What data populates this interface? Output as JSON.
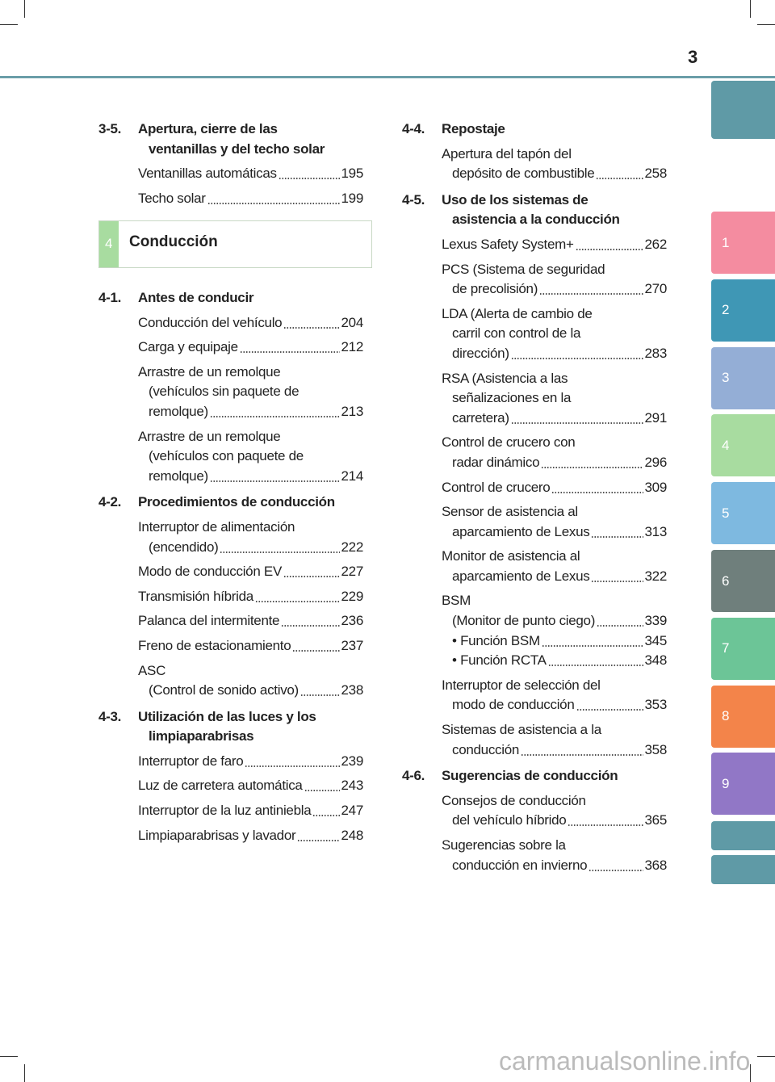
{
  "page_number": "3",
  "tabs": [
    "1",
    "2",
    "3",
    "4",
    "5",
    "6",
    "7",
    "8",
    "9"
  ],
  "left_column": {
    "top_sections": [
      {
        "number": "3-5.",
        "title": [
          "Apertura, cierre de las",
          "ventanillas y del techo solar"
        ],
        "entries": [
          {
            "lines": [
              "Ventanillas automáticas"
            ],
            "page": 195
          },
          {
            "lines": [
              "Techo solar"
            ],
            "page": 199
          }
        ]
      }
    ],
    "chapter": {
      "number": "4",
      "title": "Conducción"
    },
    "sections": [
      {
        "number": "4-1.",
        "title": [
          "Antes de conducir"
        ],
        "entries": [
          {
            "lines": [
              "Conducción del vehículo"
            ],
            "page": 204
          },
          {
            "lines": [
              "Carga y equipaje"
            ],
            "page": 212
          },
          {
            "lines": [
              "Arrastre de un remolque",
              "(vehículos sin paquete de",
              "remolque)"
            ],
            "page": 213
          },
          {
            "lines": [
              "Arrastre de un remolque",
              "(vehículos con paquete de",
              "remolque)"
            ],
            "page": 214
          }
        ]
      },
      {
        "number": "4-2.",
        "title": [
          "Procedimientos de conducción"
        ],
        "entries": [
          {
            "lines": [
              "Interruptor de alimentación",
              "(encendido)"
            ],
            "page": 222
          },
          {
            "lines": [
              "Modo de conducción EV"
            ],
            "page": 227
          },
          {
            "lines": [
              "Transmisión híbrida"
            ],
            "page": 229
          },
          {
            "lines": [
              "Palanca del intermitente"
            ],
            "page": 236
          },
          {
            "lines": [
              "Freno de estacionamiento"
            ],
            "page": 237
          },
          {
            "lines": [
              "ASC",
              "(Control de sonido activo)"
            ],
            "page": 238
          }
        ]
      },
      {
        "number": "4-3.",
        "title": [
          "Utilización de las luces y los",
          "limpiaparabrisas"
        ],
        "entries": [
          {
            "lines": [
              "Interruptor de faro"
            ],
            "page": 239
          },
          {
            "lines": [
              "Luz de carretera automática"
            ],
            "page": 243
          },
          {
            "lines": [
              "Interruptor de la luz antiniebla"
            ],
            "page": 247
          },
          {
            "lines": [
              "Limpiaparabrisas y lavador"
            ],
            "page": 248
          }
        ]
      }
    ]
  },
  "right_column": {
    "sections": [
      {
        "number": "4-4.",
        "title": [
          "Repostaje"
        ],
        "entries": [
          {
            "lines": [
              "Apertura del tapón del",
              "depósito de combustible"
            ],
            "page": 258
          }
        ]
      },
      {
        "number": "4-5.",
        "title": [
          "Uso de los sistemas de",
          "asistencia a la conducción"
        ],
        "entries": [
          {
            "lines": [
              "Lexus Safety System+"
            ],
            "page": 262
          },
          {
            "lines": [
              "PCS (Sistema de seguridad",
              "de precolisión)"
            ],
            "page": 270
          },
          {
            "lines": [
              "LDA (Alerta de cambio de",
              "carril con control de la",
              "dirección)"
            ],
            "page": 283
          },
          {
            "lines": [
              "RSA (Asistencia a las",
              "señalizaciones en la",
              "carretera)"
            ],
            "page": 291
          },
          {
            "lines": [
              "Control de crucero con",
              "radar dinámico"
            ],
            "page": 296
          },
          {
            "lines": [
              "Control de crucero"
            ],
            "page": 309
          },
          {
            "lines": [
              "Sensor de asistencia al",
              "aparcamiento de Lexus"
            ],
            "page": 313
          },
          {
            "lines": [
              "Monitor de asistencia al",
              "aparcamiento de Lexus"
            ],
            "page": 322
          },
          {
            "lines": [
              "BSM",
              "(Monitor de punto ciego)"
            ],
            "page": 339,
            "items": [
              {
                "text": "• Función BSM",
                "page": 345
              },
              {
                "text": "• Función RCTA",
                "page": 348
              }
            ]
          },
          {
            "lines": [
              "Interruptor de selección del",
              "modo de conducción"
            ],
            "page": 353
          },
          {
            "lines": [
              "Sistemas de asistencia a la",
              "conducción"
            ],
            "page": 358
          }
        ]
      },
      {
        "number": "4-6.",
        "title": [
          "Sugerencias de conducción"
        ],
        "entries": [
          {
            "lines": [
              "Consejos de conducción",
              "del vehículo híbrido"
            ],
            "page": 365
          },
          {
            "lines": [
              "Sugerencias sobre la",
              "conducción en invierno"
            ],
            "page": 368
          }
        ]
      }
    ]
  },
  "watermark": "carmanualsonline.info"
}
